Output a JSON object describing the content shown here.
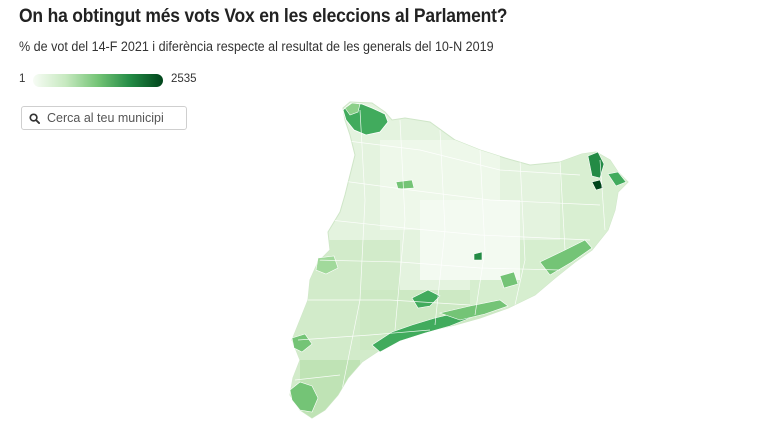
{
  "header": {
    "title": "On ha obtingut més vots Vox en les eleccions al Parlament?",
    "subtitle": "% de vot del 14-F 2021 i diferència respecte al resultat de les generals del 10-N 2019"
  },
  "legend": {
    "min_label": "1",
    "max_label": "2535",
    "colors": [
      "#f7fcf5",
      "#c7e9c0",
      "#74c476",
      "#238b45",
      "#00441b"
    ]
  },
  "search": {
    "placeholder": "Cerca al teu municipi",
    "icon": "search-icon"
  },
  "map": {
    "region": "Catalunya",
    "base_color": "#e8f5e3",
    "border_color": "#ffffff"
  }
}
